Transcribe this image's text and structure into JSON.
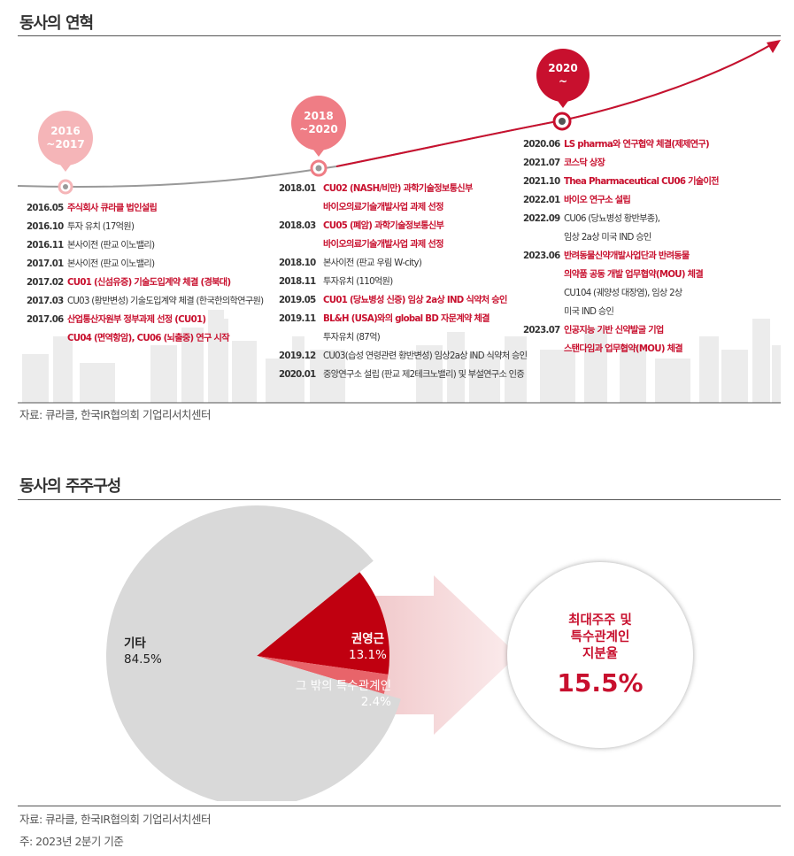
{
  "history": {
    "title": "동사의 연혁",
    "source": "자료: 큐라클, 한국IR협의회 기업리서치센터",
    "periods": [
      "2016\n~2017",
      "2018\n~2020",
      "2020\n~"
    ],
    "col1": [
      {
        "date": "2016.05",
        "text": "주식회사 큐라클 법인설립",
        "red": true
      },
      {
        "date": "2016.10",
        "text": "투자 유치 (17억원)",
        "red": false
      },
      {
        "date": "2016.11",
        "text": "본사이전 (판교 이노밸리)",
        "red": false
      },
      {
        "date": "2017.01",
        "text": "본사이전 (판교 이노밸리)",
        "red": false
      },
      {
        "date": "2017.02",
        "text": "CU01 (신섬유증) 기술도입계약 체결 (경북대)",
        "red": true
      },
      {
        "date": "2017.03",
        "text": "CU03 (황반변성) 기술도입계약 체결 (한국한의학연구원)",
        "red": false
      },
      {
        "date": "2017.06",
        "text": "산업통산자원부 정부과제 선정 (CU01)",
        "red": true
      },
      {
        "date": "",
        "text": "CU04 (면역항암), CU06 (뇌출중) 연구 시작",
        "red": true
      }
    ],
    "col2": [
      {
        "date": "2018.01",
        "text": "CU02 (NASH/비만) 과학기술정보통신부",
        "red": true
      },
      {
        "date": "",
        "text": "바이오의료기술개발사업 과제 선정",
        "red": true
      },
      {
        "date": "2018.03",
        "text": "CU05 (폐암) 과학기술정보통신부",
        "red": true
      },
      {
        "date": "",
        "text": "바이오의료기술개발사업 과제 선정",
        "red": true
      },
      {
        "date": "2018.10",
        "text": "본사이전 (판교 우림 W-city)",
        "red": false
      },
      {
        "date": "2018.11",
        "text": "투자유치 (110억원)",
        "red": false
      },
      {
        "date": "2019.05",
        "text": "CU01 (당뇨병성 신증) 임상 2a상 IND 식약처 승인",
        "red": true
      },
      {
        "date": "2019.11",
        "text": "BL&H (USA)와의 global BD 자문계약 체결",
        "red": true
      },
      {
        "date": "",
        "text": "투자유치 (87억)",
        "red": false
      },
      {
        "date": "2019.12",
        "text": "CU03(습성 연령관련 황반변성) 임상2a상 IND 식약처 승인",
        "red": false
      },
      {
        "date": "2020.01",
        "text": "중앙연구소 설립 (판교 제2테크노밸리) 및 부설연구소 인증",
        "red": false
      }
    ],
    "col3": [
      {
        "date": "2020.06",
        "text": "LS pharma와 연구협약 체결(제제연구)",
        "red": true
      },
      {
        "date": "2021.07",
        "text": "코스닥 상장",
        "red": true
      },
      {
        "date": "2021.10",
        "text": "Thea Pharmaceutical CU06 기술이전",
        "red": true
      },
      {
        "date": "2022.01",
        "text": "바이오 연구소 설립",
        "red": true
      },
      {
        "date": "2022.09",
        "text": "CU06 (당뇨병성 황반부종),",
        "red": false
      },
      {
        "date": "",
        "text": "임상 2a상 미국 IND 승인",
        "red": false
      },
      {
        "date": "2023.06",
        "text": "반려동물신약개발사업단과 반려동물",
        "red": true
      },
      {
        "date": "",
        "text": "의약품 공동 개발 업무협약(MOU) 체결",
        "red": true
      },
      {
        "date": "",
        "text": "CU104 (궤양성 대장염), 임상 2상",
        "red": false
      },
      {
        "date": "",
        "text": "미국 IND 승인",
        "red": false
      },
      {
        "date": "2023.07",
        "text": "인공지능 기반 신약발굴 기업",
        "red": true
      },
      {
        "date": "",
        "text": "스탠다임과 업무협약(MOU) 체결",
        "red": true
      }
    ]
  },
  "ownership": {
    "title": "동사의 주주구성",
    "source": "자료: 큐라클, 한국IR협의회 기업리서치센터",
    "note": "주: 2023년 2분기 기준",
    "callout_line1": "최대주주 및",
    "callout_line2": "특수관계인",
    "callout_line3": "지분율",
    "callout_value": "15.5%"
  },
  "chart_data": {
    "type": "pie",
    "categories": [
      "기타",
      "권영근",
      "그 밖의 특수관계인"
    ],
    "values": [
      84.5,
      13.1,
      2.4
    ],
    "value_labels": [
      "84.5%",
      "13.1%",
      "2.4%"
    ],
    "colors": [
      "#d9d9d9",
      "#c00010",
      "#e8646a"
    ]
  }
}
